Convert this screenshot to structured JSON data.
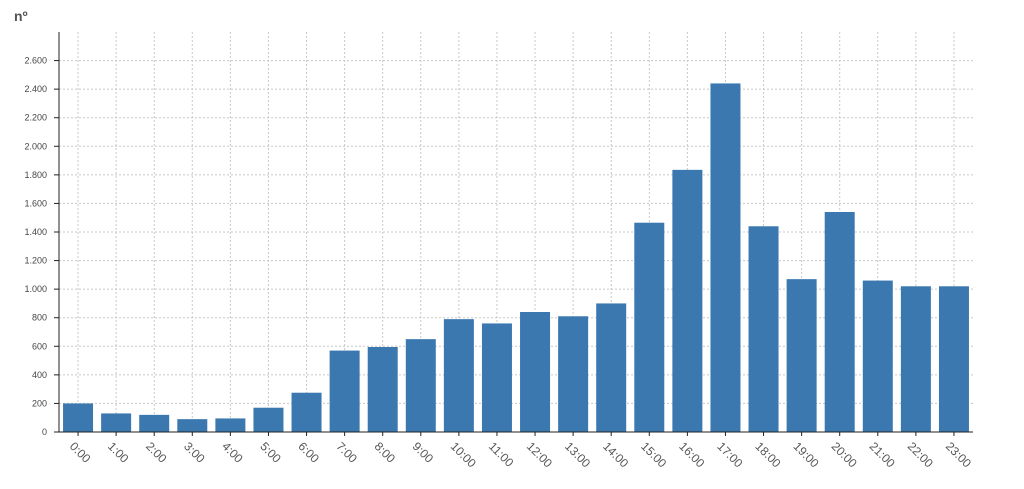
{
  "chart_data": {
    "type": "bar",
    "ylabel": "nº",
    "xlabel": "",
    "title": "",
    "categories": [
      "0:00",
      "1:00",
      "2:00",
      "3:00",
      "4:00",
      "5:00",
      "6:00",
      "7:00",
      "8:00",
      "9:00",
      "10:00",
      "11:00",
      "12:00",
      "13:00",
      "14:00",
      "15:00",
      "16:00",
      "17:00",
      "18:00",
      "19:00",
      "20:00",
      "21:00",
      "22:00",
      "23:00"
    ],
    "values": [
      200,
      130,
      120,
      90,
      95,
      170,
      275,
      570,
      595,
      650,
      790,
      760,
      840,
      810,
      900,
      1465,
      1835,
      2440,
      1440,
      1070,
      1540,
      1060,
      1020,
      1020
    ],
    "ylim": [
      0,
      2800
    ],
    "yticks": [
      0,
      200,
      400,
      600,
      800,
      1000,
      1200,
      1400,
      1600,
      1800,
      2000,
      2200,
      2400,
      2600
    ],
    "ytick_labels": [
      "0",
      "200",
      "400",
      "600",
      "800",
      "1.000",
      "1.200",
      "1.400",
      "1.600",
      "1.800",
      "2.000",
      "2.200",
      "2.400",
      "2.600"
    ],
    "grid": true,
    "bar_color": "#3b78b0"
  }
}
